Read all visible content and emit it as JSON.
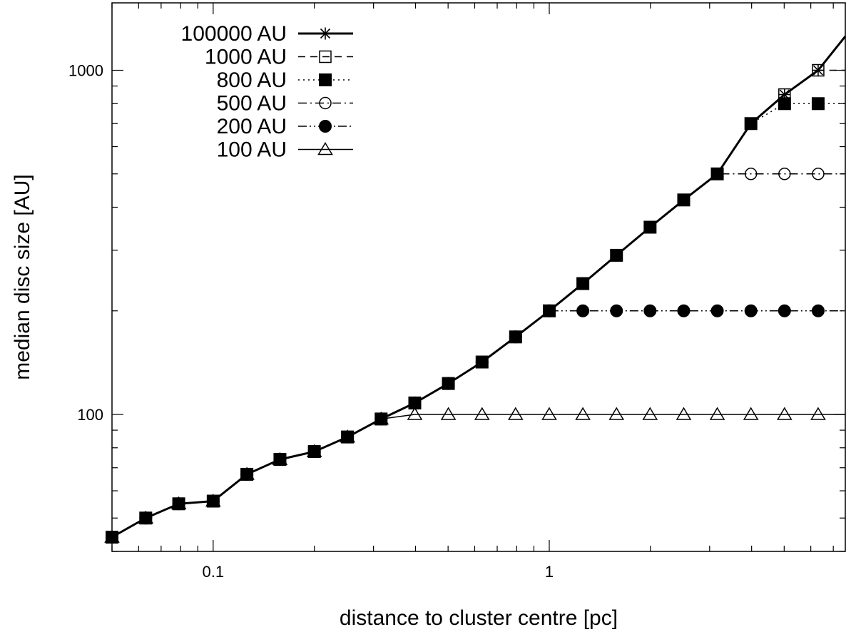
{
  "chart_data": {
    "type": "line",
    "title": "",
    "xlabel": "distance to cluster centre [pc]",
    "ylabel": "median disc size [AU]",
    "xscale": "log",
    "yscale": "log",
    "xlim": [
      0.05,
      7.6
    ],
    "ylim": [
      40,
      1570
    ],
    "x_tick_labels": [
      {
        "value": 0.1,
        "label": "0.1"
      },
      {
        "value": 1,
        "label": "1"
      }
    ],
    "y_tick_labels": [
      {
        "value": 100,
        "label": "100"
      },
      {
        "value": 1000,
        "label": "1000"
      }
    ],
    "grid": false,
    "legend_position": "top-left",
    "series": [
      {
        "name": "100000 AU",
        "marker": "star",
        "line": "solid-thick",
        "x": [
          0.05,
          0.063,
          0.079,
          0.1,
          0.126,
          0.158,
          0.2,
          0.251,
          0.316,
          0.398,
          0.501,
          0.631,
          0.794,
          1.0,
          1.259,
          1.585,
          1.995,
          2.512,
          3.162,
          3.981,
          5.012,
          6.31
        ],
        "y": [
          44,
          50,
          55,
          56,
          67,
          74,
          78,
          86,
          97,
          108,
          123,
          142,
          168,
          200,
          240,
          290,
          350,
          420,
          500,
          700,
          850,
          1000
        ]
      },
      {
        "name": "1000 AU",
        "marker": "open-square",
        "line": "dashed",
        "x": [
          0.05,
          0.063,
          0.079,
          0.1,
          0.126,
          0.158,
          0.2,
          0.251,
          0.316,
          0.398,
          0.501,
          0.631,
          0.794,
          1.0,
          1.259,
          1.585,
          1.995,
          2.512,
          3.162,
          3.981,
          5.012,
          6.31
        ],
        "y": [
          44,
          50,
          55,
          56,
          67,
          74,
          78,
          86,
          97,
          108,
          123,
          142,
          168,
          200,
          240,
          290,
          350,
          420,
          500,
          700,
          850,
          1000
        ]
      },
      {
        "name": "800 AU",
        "marker": "filled-square",
        "line": "dotted",
        "x": [
          0.05,
          0.063,
          0.079,
          0.1,
          0.126,
          0.158,
          0.2,
          0.251,
          0.316,
          0.398,
          0.501,
          0.631,
          0.794,
          1.0,
          1.259,
          1.585,
          1.995,
          2.512,
          3.162,
          3.981,
          5.012,
          6.31
        ],
        "y": [
          44,
          50,
          55,
          56,
          67,
          74,
          78,
          86,
          97,
          108,
          123,
          142,
          168,
          200,
          240,
          290,
          350,
          420,
          500,
          700,
          800,
          800
        ]
      },
      {
        "name": "500 AU",
        "marker": "open-circle",
        "line": "dash-dot",
        "x": [
          0.05,
          0.063,
          0.079,
          0.1,
          0.126,
          0.158,
          0.2,
          0.251,
          0.316,
          0.398,
          0.501,
          0.631,
          0.794,
          1.0,
          1.259,
          1.585,
          1.995,
          2.512,
          3.162,
          3.981,
          5.012,
          6.31
        ],
        "y": [
          44,
          50,
          55,
          56,
          67,
          74,
          78,
          86,
          97,
          108,
          123,
          142,
          168,
          200,
          240,
          290,
          350,
          420,
          500,
          500,
          500,
          500
        ]
      },
      {
        "name": "200 AU",
        "marker": "filled-circle",
        "line": "dash-dot-dot",
        "x": [
          0.05,
          0.063,
          0.079,
          0.1,
          0.126,
          0.158,
          0.2,
          0.251,
          0.316,
          0.398,
          0.501,
          0.631,
          0.794,
          1.0,
          1.259,
          1.585,
          1.995,
          2.512,
          3.162,
          3.981,
          5.012,
          6.31
        ],
        "y": [
          44,
          50,
          55,
          56,
          67,
          74,
          78,
          86,
          97,
          108,
          123,
          142,
          168,
          200,
          200,
          200,
          200,
          200,
          200,
          200,
          200,
          200
        ]
      },
      {
        "name": "100 AU",
        "marker": "open-triangle",
        "line": "solid-thin",
        "x": [
          0.05,
          0.063,
          0.079,
          0.1,
          0.126,
          0.158,
          0.2,
          0.251,
          0.316,
          0.398,
          0.501,
          0.631,
          0.794,
          1.0,
          1.259,
          1.585,
          1.995,
          2.512,
          3.162,
          3.981,
          5.012,
          6.31
        ],
        "y": [
          44,
          50,
          55,
          56,
          67,
          74,
          78,
          86,
          97,
          100,
          100,
          100,
          100,
          100,
          100,
          100,
          100,
          100,
          100,
          100,
          100,
          100
        ]
      }
    ]
  }
}
